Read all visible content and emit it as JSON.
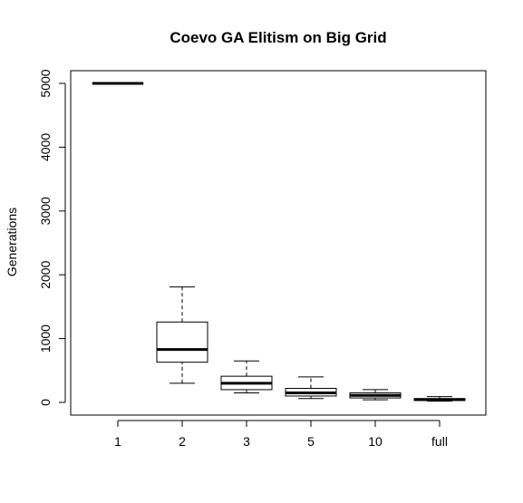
{
  "chart_data": {
    "type": "boxplot",
    "title": "Coevo GA Elitism on Big Grid",
    "xlabel": "",
    "ylabel": "Generations",
    "categories": [
      "1",
      "2",
      "3",
      "5",
      "10",
      "full"
    ],
    "boxes": [
      {
        "category": "1",
        "whisker_low": 5000,
        "q1": 5000,
        "median": 5000,
        "q3": 5000,
        "whisker_high": 5000
      },
      {
        "category": "2",
        "whisker_low": 300,
        "q1": 630,
        "median": 830,
        "q3": 1260,
        "whisker_high": 1810
      },
      {
        "category": "3",
        "whisker_low": 150,
        "q1": 200,
        "median": 300,
        "q3": 410,
        "whisker_high": 650
      },
      {
        "category": "5",
        "whisker_low": 60,
        "q1": 100,
        "median": 150,
        "q3": 220,
        "whisker_high": 400
      },
      {
        "category": "10",
        "whisker_low": 40,
        "q1": 70,
        "median": 110,
        "q3": 150,
        "whisker_high": 200
      },
      {
        "category": "full",
        "whisker_low": 20,
        "q1": 30,
        "median": 45,
        "q3": 60,
        "whisker_high": 90
      }
    ],
    "yticks": [
      0,
      1000,
      2000,
      3000,
      4000,
      5000
    ],
    "ylim": [
      -180,
      5200
    ],
    "grid": false,
    "legend": "none",
    "colors": {
      "box_fill": "#ffffff",
      "stroke": "#000000",
      "background": "#ffffff"
    }
  }
}
